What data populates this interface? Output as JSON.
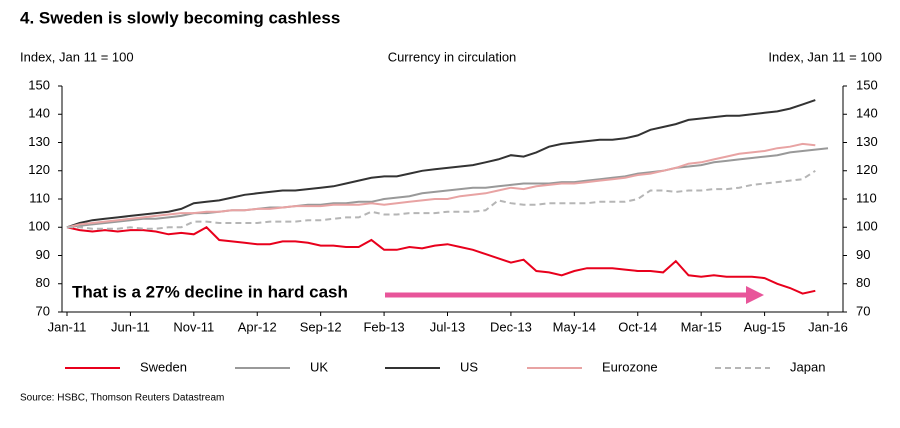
{
  "chart_data": {
    "type": "line",
    "title": "4. Sweden is slowly becoming cashless",
    "subtitle": "Currency in circulation",
    "ylabel": "Index, Jan 11 = 100",
    "y2label": "Index, Jan 11 = 100",
    "source": "Source: HSBC, Thomson Reuters Datastream",
    "annotation": "That is a 27% decline in hard cash",
    "annotation_color": "#e8001c",
    "arrow_color": "#e8559a",
    "categories": [
      "Jan-11",
      null,
      null,
      null,
      null,
      "Jun-11",
      null,
      null,
      null,
      null,
      "Nov-11",
      null,
      null,
      null,
      null,
      "Apr-12",
      null,
      null,
      null,
      null,
      "Sep-12",
      null,
      null,
      null,
      null,
      "Feb-13",
      null,
      null,
      null,
      null,
      "Jul-13",
      null,
      null,
      null,
      null,
      "Dec-13",
      null,
      null,
      null,
      null,
      "May-14",
      null,
      null,
      null,
      null,
      "Oct-14",
      null,
      null,
      null,
      null,
      "Mar-15",
      null,
      null,
      null,
      null,
      "Aug-15",
      null,
      null,
      null,
      null,
      "Jan-16"
    ],
    "series": [
      {
        "name": "Sweden",
        "color": "#e8001c",
        "linestyle": "solid",
        "values": [
          100,
          99,
          98.5,
          99,
          98.5,
          99,
          99,
          98.5,
          97.5,
          98,
          97.5,
          100,
          95.5,
          95,
          94.5,
          94,
          94,
          95,
          95,
          94.5,
          93.5,
          93.5,
          93,
          93,
          95.5,
          92,
          92,
          93,
          92.5,
          93.5,
          94,
          93,
          92,
          90.5,
          89,
          87.5,
          88.5,
          84.5,
          84,
          83,
          84.5,
          85.5,
          85.5,
          85.5,
          85,
          84.5,
          84.5,
          84,
          88,
          83,
          82.5,
          83,
          82.5,
          82.5,
          82.5,
          82,
          80,
          78.5,
          76.5,
          77.5,
          null
        ]
      },
      {
        "name": "UK",
        "color": "#999999",
        "linestyle": "solid",
        "values": [
          100,
          100.5,
          101,
          101.5,
          102,
          102.5,
          103,
          103,
          103.5,
          104,
          105,
          105,
          105.5,
          106,
          106,
          106.5,
          107,
          107,
          107.5,
          108,
          108,
          108.5,
          108.5,
          109,
          109,
          110,
          110.5,
          111,
          112,
          112.5,
          113,
          113.5,
          114,
          114,
          114.5,
          115,
          115.5,
          115.5,
          115.5,
          116,
          116,
          116.5,
          117,
          117.5,
          118,
          119,
          119.5,
          120,
          121,
          121.5,
          122,
          123,
          123.5,
          124,
          124.5,
          125,
          125.5,
          126.5,
          127,
          127.5,
          128
        ]
      },
      {
        "name": "US",
        "color": "#333333",
        "linestyle": "solid",
        "values": [
          100,
          101.5,
          102.5,
          103,
          103.5,
          104,
          104.5,
          105,
          105.5,
          106.5,
          108.5,
          109,
          109.5,
          110.5,
          111.5,
          112,
          112.5,
          113,
          113,
          113.5,
          114,
          114.5,
          115.5,
          116.5,
          117.5,
          118,
          118,
          119,
          120,
          120.5,
          121,
          121.5,
          122,
          123,
          124,
          125.5,
          125,
          126.5,
          128.5,
          129.5,
          130,
          130.5,
          131,
          131,
          131.5,
          132.5,
          134.5,
          135.5,
          136.5,
          138,
          138.5,
          139,
          139.5,
          139.5,
          140,
          140.5,
          141,
          142,
          143.5,
          145,
          null
        ]
      },
      {
        "name": "Eurozone",
        "color": "#e8a3a3",
        "linestyle": "solid",
        "values": [
          100,
          101,
          101.5,
          102,
          102.5,
          103,
          103.5,
          104,
          104.5,
          105,
          105,
          105.5,
          105.5,
          106,
          106,
          106.5,
          106.5,
          107,
          107.5,
          107.5,
          107.5,
          108,
          108,
          108,
          108.5,
          108,
          108.5,
          109,
          109.5,
          110,
          110,
          111,
          111.5,
          112,
          113,
          114,
          113.5,
          114.5,
          115,
          115.5,
          115.5,
          116,
          116.5,
          117,
          117.5,
          118.5,
          119,
          120,
          121,
          122.5,
          123,
          124,
          125,
          126,
          126.5,
          127,
          128,
          128.5,
          129.5,
          129,
          null
        ]
      },
      {
        "name": "Japan",
        "color": "#b5b5b5",
        "linestyle": "dashed",
        "values": [
          100,
          100,
          99.5,
          99.5,
          99.5,
          100,
          99.5,
          99.5,
          100,
          100,
          102,
          102,
          101.5,
          101.5,
          101.5,
          101.5,
          102,
          102,
          102,
          102.5,
          102.5,
          103,
          103.5,
          103.5,
          105.5,
          104.5,
          104.5,
          105,
          105,
          105,
          105.5,
          105.5,
          105.5,
          106,
          109.5,
          108.5,
          108,
          108,
          108.5,
          108.5,
          108.5,
          108.5,
          109,
          109,
          109,
          110,
          113,
          113,
          112.5,
          113,
          113,
          113.5,
          113.5,
          114,
          115,
          115.5,
          116,
          116.5,
          117,
          120,
          null
        ]
      }
    ],
    "ylim": [
      70,
      150
    ],
    "yticks": [
      70,
      80,
      90,
      100,
      110,
      120,
      130,
      140,
      150
    ],
    "y2lim": [
      70,
      150
    ],
    "y2ticks": [
      70,
      80,
      90,
      100,
      110,
      120,
      130,
      140,
      150
    ],
    "grid": false,
    "legend": "bottom"
  }
}
